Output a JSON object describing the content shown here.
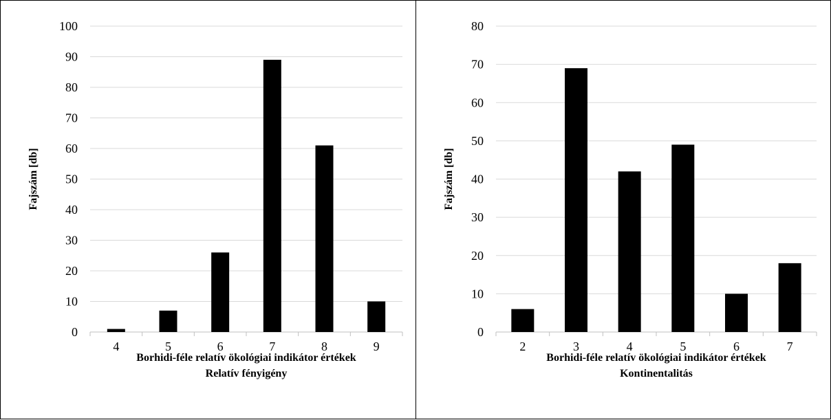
{
  "chart_data": [
    {
      "type": "bar",
      "categories": [
        "4",
        "5",
        "6",
        "7",
        "8",
        "9"
      ],
      "values": [
        1,
        7,
        26,
        89,
        61,
        10
      ],
      "ylabel": "Fajszám [db]",
      "xlabel_line1": "Borhidi-féle relatív ökológiai indikátor értékek",
      "xlabel_line2": "Relatív fényigény",
      "ylim": [
        0,
        100
      ],
      "yticks": [
        0,
        10,
        20,
        30,
        40,
        50,
        60,
        70,
        80,
        90,
        100
      ],
      "bar_color": "#000000",
      "grid": true
    },
    {
      "type": "bar",
      "categories": [
        "2",
        "3",
        "4",
        "5",
        "6",
        "7"
      ],
      "values": [
        6,
        69,
        42,
        49,
        10,
        18
      ],
      "ylabel": "Fajszám [db]",
      "xlabel_line1": "Borhidi-féle relatív ökológiai indikátor értékek",
      "xlabel_line2": "Kontinentalitás",
      "ylim": [
        0,
        80
      ],
      "yticks": [
        0,
        10,
        20,
        30,
        40,
        50,
        60,
        70,
        80
      ],
      "bar_color": "#000000",
      "grid": true
    }
  ]
}
